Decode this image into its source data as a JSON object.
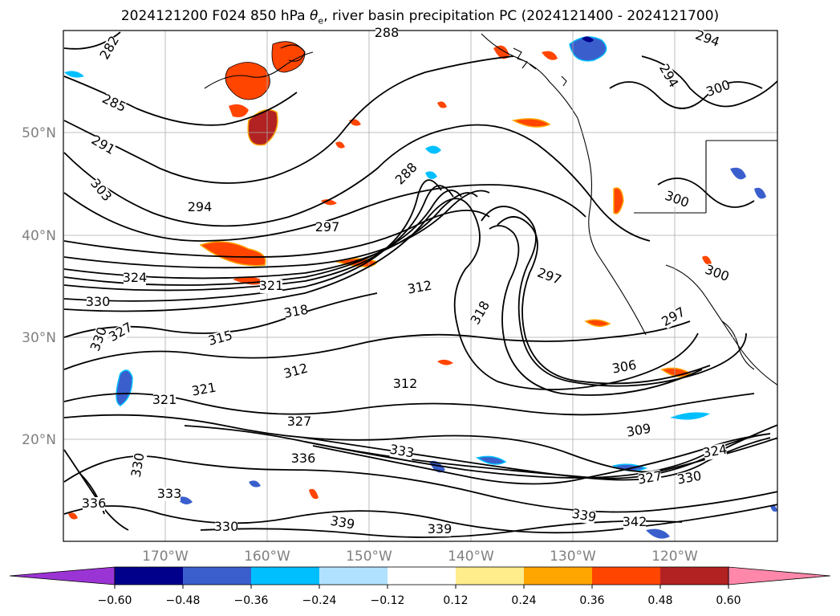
{
  "title": {
    "prefix": "2024121200 F024 850 hPa ",
    "theta": "θ",
    "sub": "e",
    "suffix": ", river basin precipitation PC (2024121400 - 2024121700)"
  },
  "map": {
    "lat_labels": [
      "50°N",
      "40°N",
      "30°N",
      "20°N"
    ],
    "lon_labels": [
      "170°W",
      "160°W",
      "150°W",
      "140°W",
      "130°W",
      "120°W"
    ],
    "label_color": "#808080",
    "contour_labels": [
      "282",
      "285",
      "288",
      "291",
      "294",
      "297",
      "300",
      "303",
      "306",
      "309",
      "312",
      "315",
      "318",
      "321",
      "324",
      "327",
      "330",
      "333",
      "336",
      "339",
      "342"
    ],
    "shown_contour_labels": [
      {
        "text": "282"
      },
      {
        "text": "285"
      },
      {
        "text": "288"
      },
      {
        "text": "288"
      },
      {
        "text": "294"
      },
      {
        "text": "291"
      },
      {
        "text": "303"
      },
      {
        "text": "294"
      },
      {
        "text": "297"
      },
      {
        "text": "324"
      },
      {
        "text": "321"
      },
      {
        "text": "330"
      },
      {
        "text": "312"
      },
      {
        "text": "318"
      },
      {
        "text": "315"
      },
      {
        "text": "327"
      },
      {
        "text": "330"
      },
      {
        "text": "297"
      },
      {
        "text": "318"
      },
      {
        "text": "312"
      },
      {
        "text": "321"
      },
      {
        "text": "321"
      },
      {
        "text": "312"
      },
      {
        "text": "327"
      },
      {
        "text": "336"
      },
      {
        "text": "333"
      },
      {
        "text": "330"
      },
      {
        "text": "333"
      },
      {
        "text": "336"
      },
      {
        "text": "330"
      },
      {
        "text": "339"
      },
      {
        "text": "339"
      },
      {
        "text": "339"
      },
      {
        "text": "342"
      },
      {
        "text": "306"
      },
      {
        "text": "309"
      },
      {
        "text": "327"
      },
      {
        "text": "330"
      },
      {
        "text": "324"
      },
      {
        "text": "300"
      },
      {
        "text": "297"
      },
      {
        "text": "300"
      },
      {
        "text": "300"
      },
      {
        "text": "294"
      }
    ]
  },
  "colorbar": {
    "ticks": [
      "−0.60",
      "−0.48",
      "−0.36",
      "−0.24",
      "−0.12",
      "0.12",
      "0.24",
      "0.36",
      "0.48",
      "0.60"
    ],
    "colors": [
      "#9b34d4",
      "#00008b",
      "#3a5fcd",
      "#00bfff",
      "#b0e2ff",
      "#ffffff",
      "#ffec8b",
      "#ffa500",
      "#ff4500",
      "#b22222",
      "#ff88aa"
    ]
  }
}
